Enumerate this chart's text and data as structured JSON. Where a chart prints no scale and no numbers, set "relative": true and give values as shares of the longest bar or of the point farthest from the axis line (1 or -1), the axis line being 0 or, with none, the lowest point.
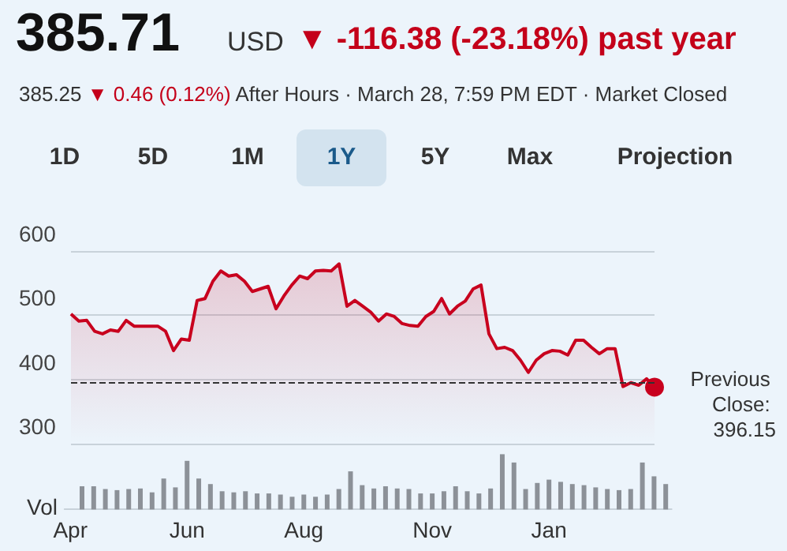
{
  "chart_data": [
    {
      "type": "area",
      "title": "385.71",
      "annotations": [
        "USD",
        "▼ -116.38 (-23.18%) past year",
        "385.25",
        "▼ 0.46 (0.12%)",
        "After Hours · March 28, 7:59 PM EDT · Market Closed",
        "1D",
        "5D",
        "1M",
        "1Y",
        "5Y",
        "Max",
        "Projection"
      ],
      "categories": [
        null,
        null,
        null,
        null,
        null,
        null,
        null,
        null,
        null,
        null,
        null,
        null,
        null,
        null,
        null,
        null,
        null,
        null,
        null,
        null,
        null,
        null,
        null,
        null,
        null,
        null,
        null,
        null,
        null,
        null,
        null,
        null,
        null,
        null,
        null,
        null,
        null,
        null,
        null,
        null,
        null,
        null,
        null,
        null,
        null,
        null,
        null,
        null,
        null,
        null,
        null,
        null,
        null,
        null,
        null,
        null,
        null,
        null,
        null,
        null,
        null,
        null,
        null,
        null,
        null,
        null,
        null,
        null,
        null,
        null,
        null,
        null,
        null,
        null,
        null
      ],
      "series": [
        {
          "color": "#c8001e",
          "values": [
            502,
            491,
            492,
            475,
            471,
            477,
            475,
            492,
            483,
            483,
            483,
            483,
            475,
            445,
            463,
            461,
            523,
            526,
            553,
            569,
            561,
            563,
            553,
            537,
            541,
            545,
            510,
            530,
            547,
            561,
            557,
            569,
            570,
            569,
            580,
            514,
            523,
            514,
            505,
            491,
            502,
            498,
            487,
            484,
            483,
            498,
            506,
            526,
            502,
            514,
            522,
            541,
            547,
            471,
            448,
            450,
            445,
            430,
            411,
            430,
            440,
            445,
            444,
            438,
            461,
            461,
            450,
            440,
            448,
            448,
            389,
            395,
            391,
            401,
            388
          ]
        }
      ],
      "ylim": [
        300,
        600
      ],
      "yticks": [
        300,
        400,
        500,
        600
      ],
      "grid": "y",
      "tick_labels": "y",
      "ref_lines": [
        {
          "axis": "y",
          "value": 396.15,
          "label": "Previous Close: 396.15",
          "color": "#333333",
          "line_style": "dashed"
        }
      ]
    },
    {
      "type": "bar",
      "ylabel": "Vol",
      "relative": true,
      "tick_labels": "x",
      "color": "#8c9198",
      "categories": [
        "Apr",
        null,
        null,
        null,
        null,
        null,
        null,
        null,
        null,
        null,
        "Jun",
        null,
        null,
        null,
        null,
        null,
        null,
        null,
        null,
        null,
        "Aug",
        null,
        null,
        null,
        null,
        null,
        null,
        null,
        null,
        null,
        null,
        "Nov",
        null,
        null,
        null,
        null,
        null,
        null,
        null,
        null,
        null,
        "Jan",
        null,
        null,
        null,
        null,
        null,
        null,
        null,
        null,
        null,
        null
      ],
      "values": [
        null,
        0.42,
        0.42,
        0.37,
        0.35,
        0.37,
        0.38,
        0.31,
        0.56,
        0.4,
        0.88,
        0.56,
        0.46,
        0.33,
        0.31,
        0.33,
        0.29,
        0.29,
        0.27,
        0.23,
        0.27,
        0.23,
        0.27,
        0.37,
        0.69,
        0.44,
        0.38,
        0.42,
        0.38,
        0.37,
        0.29,
        0.29,
        0.33,
        0.42,
        0.33,
        0.29,
        0.38,
        1,
        0.85,
        0.37,
        0.48,
        0.54,
        0.5,
        0.46,
        0.44,
        0.4,
        0.37,
        0.35,
        0.37,
        0.85,
        0.6,
        0.46
      ]
    }
  ]
}
